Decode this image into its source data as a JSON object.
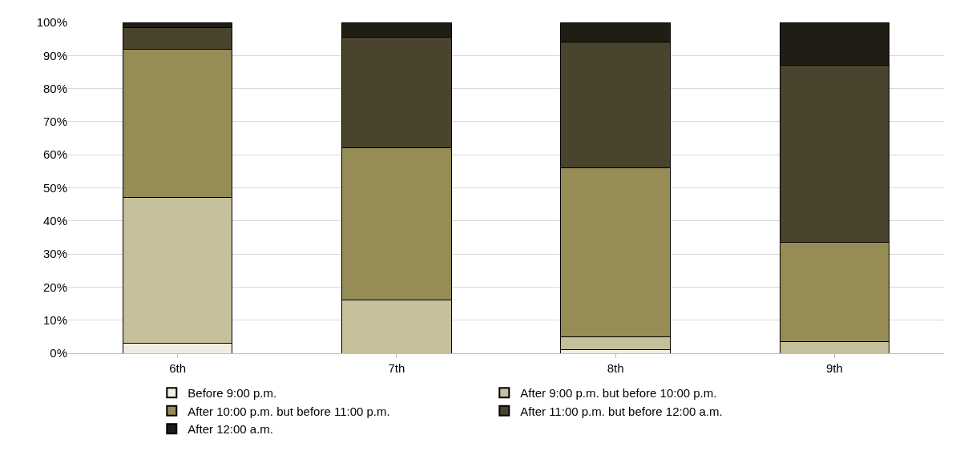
{
  "chart_data": {
    "type": "bar",
    "stacked": true,
    "categories": [
      "6th",
      "7th",
      "8th",
      "9th"
    ],
    "series": [
      {
        "name": "Before 9:00 p.m.",
        "color": "#f0eee2",
        "values": [
          3,
          0,
          1,
          0
        ]
      },
      {
        "name": "After 9:00 p.m. but before 10:00 p.m.",
        "color": "#c6bf9b",
        "values": [
          44,
          16,
          4,
          3.5
        ]
      },
      {
        "name": "After 10:00 p.m. but before 11:00 p.m.",
        "color": "#968c55",
        "values": [
          45,
          46,
          51,
          30
        ]
      },
      {
        "name": "After 11:00 p.m. but before 12:00 a.m.",
        "color": "#4a432d",
        "values": [
          6.5,
          33.5,
          38,
          53.5
        ]
      },
      {
        "name": "After 12:00 a.m.",
        "color": "#1f1d14",
        "values": [
          1.5,
          4.5,
          6,
          13
        ]
      }
    ],
    "ylim": [
      0,
      100
    ],
    "yticks": [
      {
        "value": 0,
        "label": "0%"
      },
      {
        "value": 10,
        "label": "10%"
      },
      {
        "value": 20,
        "label": "20%"
      },
      {
        "value": 30,
        "label": "30%"
      },
      {
        "value": 40,
        "label": "40%"
      },
      {
        "value": 50,
        "label": "50%"
      },
      {
        "value": 60,
        "label": "60%"
      },
      {
        "value": 70,
        "label": "70%"
      },
      {
        "value": 80,
        "label": "80%"
      },
      {
        "value": 90,
        "label": "90%"
      },
      {
        "value": 100,
        "label": "100%"
      }
    ],
    "grid": "y",
    "legend": "bottom"
  }
}
